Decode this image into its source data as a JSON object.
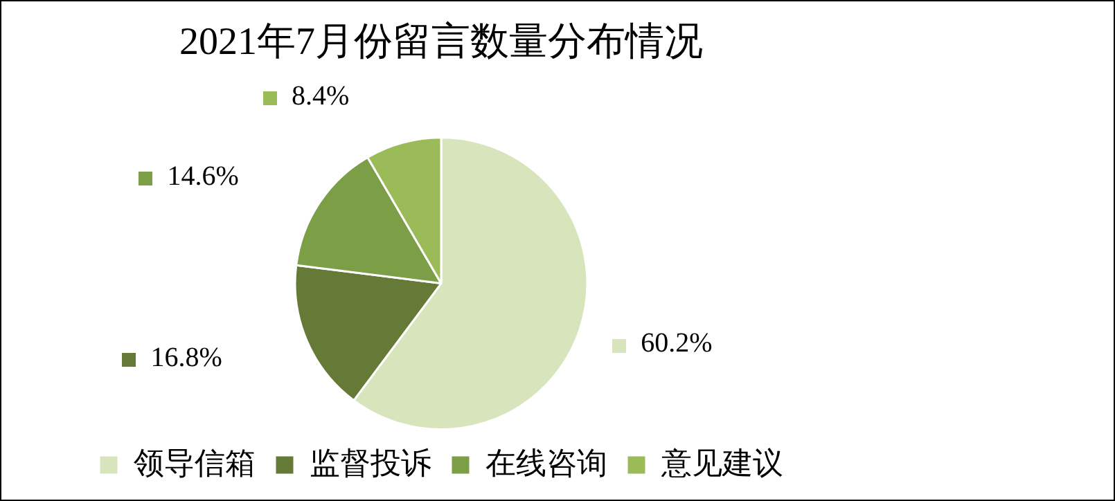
{
  "chart_data": {
    "type": "pie",
    "title": "2021年7月份留言数量分布情况",
    "categories": [
      "领导信箱",
      "监督投诉",
      "在线咨询",
      "意见建议"
    ],
    "values": [
      60.2,
      16.8,
      14.6,
      8.4
    ],
    "value_labels": [
      "60.2%",
      "16.8%",
      "14.6%",
      "8.4%"
    ],
    "colors": [
      "#d8e4bc",
      "#657a36",
      "#7b9e46",
      "#9bbb59"
    ],
    "legend": "bottom"
  }
}
